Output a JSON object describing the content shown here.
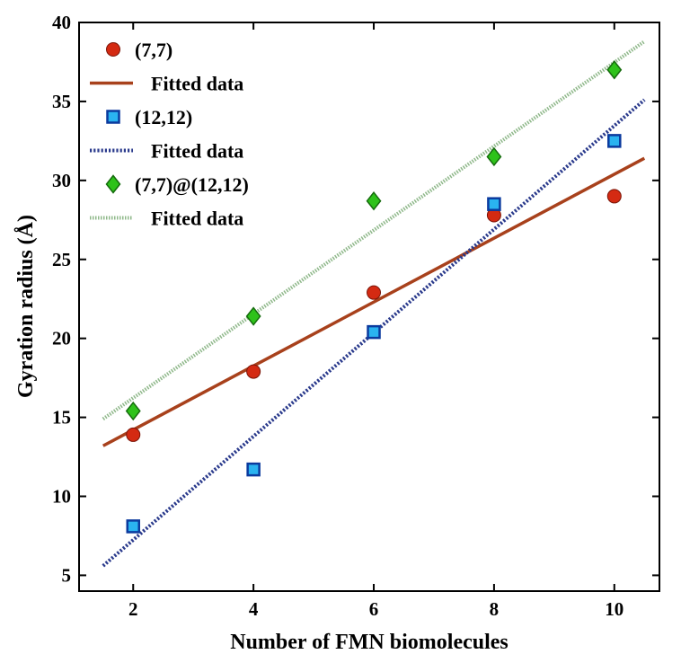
{
  "chart_data": {
    "type": "scatter",
    "xlabel": "Number of FMN biomolecules",
    "ylabel": "Gyration radius (Å)",
    "xlim": [
      1.1,
      10.75
    ],
    "ylim": [
      4,
      40
    ],
    "xticks": [
      2,
      4,
      6,
      8,
      10
    ],
    "yticks": [
      5,
      10,
      15,
      20,
      25,
      30,
      35,
      40
    ],
    "legend_position": "top-left",
    "grid": false,
    "series": [
      {
        "name": "(7,7)",
        "kind": "points",
        "marker": "circle",
        "color": "#d42a12",
        "x": [
          2,
          4,
          6,
          8,
          10
        ],
        "y": [
          13.9,
          17.9,
          22.9,
          27.8,
          29.0
        ]
      },
      {
        "name": "Fitted data",
        "kind": "fit",
        "style": "solid",
        "color": "#a8411c",
        "x": [
          1.5,
          10.5
        ],
        "y": [
          13.2,
          31.4
        ]
      },
      {
        "name": "(12,12)",
        "kind": "points",
        "marker": "square",
        "color": "#2ab3f0",
        "x": [
          2,
          4,
          6,
          8,
          10
        ],
        "y": [
          8.1,
          11.7,
          20.4,
          28.5,
          32.5
        ]
      },
      {
        "name": "Fitted data",
        "kind": "fit",
        "style": "dotted",
        "color": "#2a3a8c",
        "x": [
          1.5,
          10.5
        ],
        "y": [
          5.6,
          35.1
        ]
      },
      {
        "name": "(7,7)@(12,12)",
        "kind": "points",
        "marker": "diamond",
        "color": "#2ec21a",
        "x": [
          2,
          4,
          6,
          8,
          10
        ],
        "y": [
          15.4,
          21.4,
          28.7,
          31.5,
          37.0
        ]
      },
      {
        "name": "Fitted data",
        "kind": "fit",
        "style": "dotted-light",
        "color": "#8fb88a",
        "x": [
          1.5,
          10.5
        ],
        "y": [
          14.9,
          38.8
        ]
      }
    ]
  }
}
